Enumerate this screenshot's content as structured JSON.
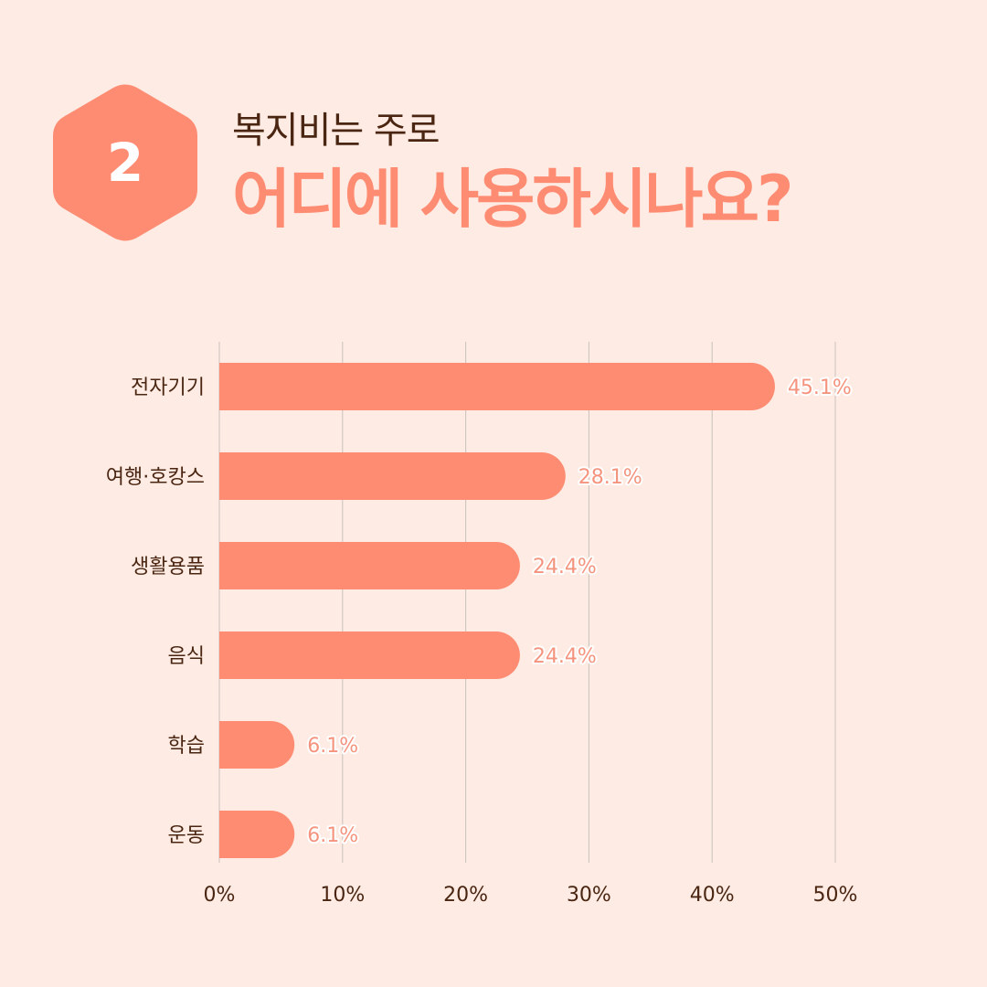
{
  "badge": {
    "number": "2"
  },
  "title": {
    "line1": "복지비는 주로",
    "line2": "어디에 사용하시나요?"
  },
  "colors": {
    "background": "#feebe3",
    "bar": "#fe8c73",
    "value_label": "#f5947e",
    "text": "#4a2612",
    "grid": "#c9c2bd"
  },
  "chart_data": {
    "type": "bar",
    "orientation": "horizontal",
    "categories": [
      "전자기기",
      "여행·호캉스",
      "생활용품",
      "음식",
      "학습",
      "운동"
    ],
    "values": [
      45.1,
      28.1,
      24.4,
      24.4,
      6.1,
      6.1
    ],
    "value_labels": [
      "45.1%",
      "28.1%",
      "24.4%",
      "24.4%",
      "6.1%",
      "6.1%"
    ],
    "xlim": [
      0,
      50
    ],
    "x_ticks": [
      0,
      10,
      20,
      30,
      40,
      50
    ],
    "x_tick_labels": [
      "0%",
      "10%",
      "20%",
      "30%",
      "40%",
      "50%"
    ],
    "grid": true,
    "legend": false
  }
}
